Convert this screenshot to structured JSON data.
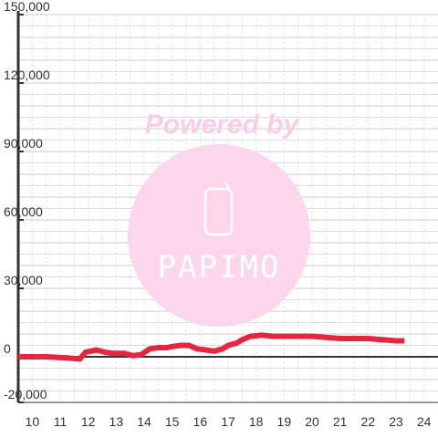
{
  "chart_data": {
    "type": "line",
    "title": "",
    "xlabel": "",
    "ylabel": "",
    "xlim": [
      9.5,
      24.5
    ],
    "ylim": [
      -20000,
      150000
    ],
    "x_ticks": [
      10,
      11,
      12,
      13,
      14,
      15,
      16,
      17,
      18,
      19,
      20,
      21,
      22,
      23,
      24
    ],
    "x_tick_labels": [
      "10",
      "11",
      "12",
      "13",
      "14",
      "15",
      "16",
      "17",
      "18",
      "19",
      "20",
      "21",
      "22",
      "23",
      "24"
    ],
    "y_ticks": [
      -20000,
      0,
      30000,
      60000,
      90000,
      120000,
      150000
    ],
    "y_tick_labels": [
      "-20,000",
      "0",
      "30,000",
      "60,000",
      "90,000",
      "120,000",
      "150,000"
    ],
    "grid": true,
    "legend": "none",
    "colors": {
      "line": "#e8253f",
      "axis": "#333333",
      "grid_major": "#cccccc",
      "grid_minor": "#dddddd",
      "watermark": "#f9cde4"
    },
    "series": [
      {
        "x": [
          9.5,
          10.5,
          11.3,
          11.7,
          11.9,
          12.3,
          12.6,
          12.9,
          13.3,
          13.6,
          13.9,
          14.2,
          14.5,
          14.8,
          15.0,
          15.3,
          15.6,
          15.9,
          16.2,
          16.5,
          16.8,
          17.0,
          17.3,
          17.5,
          17.8,
          18.2,
          18.6,
          19.0,
          19.5,
          20.0,
          20.5,
          21.0,
          21.5,
          22.0,
          22.5,
          23.0,
          23.3
        ],
        "y": [
          0,
          0,
          -500,
          -1000,
          2000,
          3000,
          2000,
          1500,
          1500,
          500,
          1000,
          3500,
          4000,
          4000,
          4500,
          5000,
          5000,
          3500,
          3000,
          2500,
          3500,
          5000,
          6000,
          7500,
          9000,
          9500,
          9000,
          9000,
          9000,
          9000,
          8500,
          8000,
          8000,
          8000,
          7500,
          7000,
          7000
        ]
      }
    ]
  },
  "watermark": {
    "text": "Powered by",
    "logo_text": "PAPIMO"
  }
}
